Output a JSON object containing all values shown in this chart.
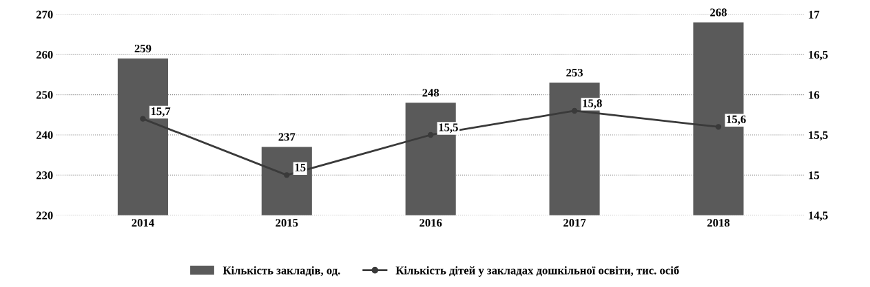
{
  "chart_data": {
    "type": "bar",
    "categories": [
      "2014",
      "2015",
      "2016",
      "2017",
      "2018"
    ],
    "series": [
      {
        "name": "Кількість закладів, од.",
        "color": "#5a5a5a",
        "values": [
          259,
          237,
          248,
          253,
          268
        ],
        "value_labels": [
          "259",
          "237",
          "248",
          "253",
          "268"
        ]
      },
      {
        "name": "Кількість дітей у закладах дошкільної освіти, тис. осіб",
        "type": "line",
        "axis": "y2",
        "color": "#3a3a3a",
        "values": [
          15.7,
          15,
          15.5,
          15.8,
          15.6
        ],
        "value_labels": [
          "15,7",
          "15",
          "15,5",
          "15,8",
          "15,6"
        ]
      }
    ],
    "ylim": [
      220,
      270
    ],
    "yticks": [
      220,
      230,
      240,
      250,
      260,
      270
    ],
    "y2lim": [
      14.5,
      17
    ],
    "y2ticks": [
      {
        "value": 14.5,
        "label": "14,5"
      },
      15,
      {
        "value": 15.5,
        "label": "15,5"
      },
      16,
      {
        "value": 16.5,
        "label": "16,5"
      },
      17
    ],
    "grid": "y",
    "legend": "bottom",
    "marker": "circle",
    "line_style": "solid"
  }
}
